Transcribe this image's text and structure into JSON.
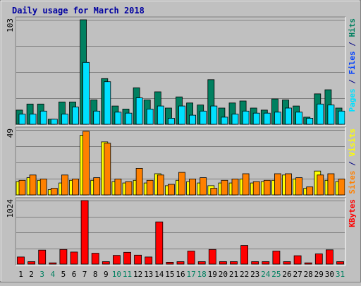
{
  "chart_data": {
    "type": "bar",
    "title": "Daily usage for March 2018",
    "categories": [
      "1",
      "2",
      "3",
      "4",
      "5",
      "6",
      "7",
      "8",
      "9",
      "10",
      "11",
      "12",
      "13",
      "14",
      "15",
      "16",
      "17",
      "18",
      "19",
      "20",
      "21",
      "22",
      "23",
      "24",
      "25",
      "26",
      "27",
      "28",
      "29",
      "30",
      "31"
    ],
    "weekend_days": [
      "3",
      "4",
      "10",
      "11",
      "17",
      "18",
      "24",
      "25",
      "31"
    ],
    "panels": [
      {
        "id": "hits",
        "max_label": "103",
        "ymax": 103,
        "legend": [
          {
            "text": "Pages",
            "color": "#00e0ff"
          },
          {
            "text": " / ",
            "color": "#000080"
          },
          {
            "text": "Files",
            "color": "#0040ff"
          },
          {
            "text": " / ",
            "color": "#000080"
          },
          {
            "text": "Hits",
            "color": "#008060"
          }
        ],
        "series": [
          {
            "name": "Hits",
            "color": "#008060",
            "values": [
              14,
              20,
              20,
              5,
              22,
              22,
              103,
              24,
              45,
              18,
              15,
              36,
              24,
              32,
              16,
              27,
              21,
              19,
              44,
              16,
              21,
              23,
              16,
              14,
              25,
              24,
              18,
              7,
              30,
              34,
              16
            ]
          },
          {
            "name": "Files",
            "color": "#00e0ff",
            "values": [
              10,
              10,
              13,
              5,
              10,
              17,
              61,
              13,
              42,
              12,
              11,
              26,
              15,
              18,
              6,
              18,
              9,
              13,
              18,
              7,
              10,
              13,
              11,
              11,
              12,
              16,
              12,
              6,
              20,
              19,
              13
            ]
          }
        ]
      },
      {
        "id": "visits",
        "max_label": "49",
        "ymax": 49,
        "legend": [
          {
            "text": "Sites",
            "color": "#ff8000"
          },
          {
            "text": " / ",
            "color": "#000080"
          },
          {
            "text": "Visits",
            "color": "#ffff00"
          }
        ],
        "series": [
          {
            "name": "Visits",
            "color": "#ffff00",
            "values": [
              10,
              13,
              11,
              4,
              9,
              11,
              45,
              11,
              40,
              10,
              9,
              11,
              9,
              16,
              7,
              11,
              10,
              9,
              7,
              9,
              9,
              12,
              9,
              10,
              11,
              15,
              12,
              5,
              18,
              11,
              10
            ]
          },
          {
            "name": "Sites",
            "color": "#ff8000",
            "values": [
              11,
              15,
              12,
              5,
              15,
              12,
              48,
              13,
              39,
              12,
              10,
              20,
              11,
              15,
              8,
              17,
              12,
              13,
              5,
              11,
              12,
              16,
              10,
              11,
              16,
              16,
              13,
              6,
              15,
              16,
              12
            ]
          }
        ]
      },
      {
        "id": "kbytes",
        "max_label": "1024",
        "ymax": 1024,
        "legend": [
          {
            "text": "KBytes",
            "color": "#ff0000"
          }
        ],
        "series": [
          {
            "name": "KBytes",
            "color": "#ff0000",
            "values": [
              115,
              40,
              225,
              20,
              235,
              195,
              1024,
              175,
              40,
              140,
              190,
              145,
              115,
              680,
              30,
              40,
              210,
              40,
              235,
              40,
              40,
              300,
              40,
              40,
              210,
              40,
              135,
              20,
              165,
              230,
              40
            ]
          }
        ]
      }
    ],
    "grid": true
  }
}
